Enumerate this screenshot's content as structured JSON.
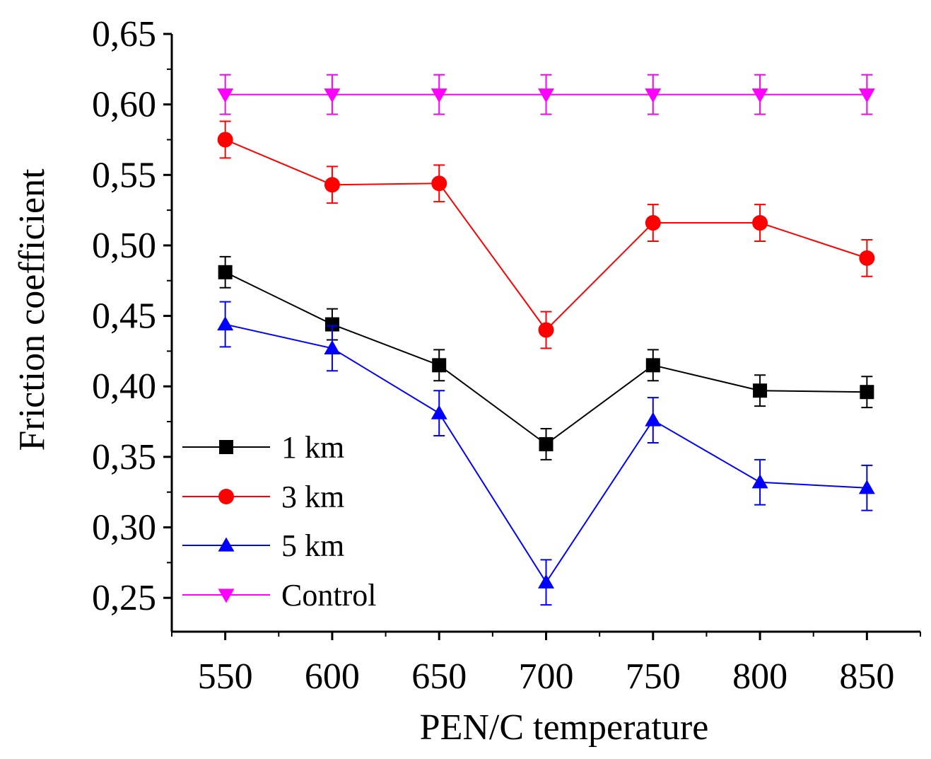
{
  "chart_data": {
    "type": "line",
    "title": "",
    "xlabel": "PEN/C temperature",
    "ylabel": "Friction coefficient",
    "x": [
      550,
      600,
      650,
      700,
      750,
      800,
      850
    ],
    "x_tick_labels": [
      "550",
      "600",
      "650",
      "700",
      "750",
      "800",
      "850"
    ],
    "y_ticks": [
      0.25,
      0.3,
      0.35,
      0.4,
      0.45,
      0.5,
      0.55,
      0.6,
      0.65
    ],
    "y_tick_labels": [
      "0,25",
      "0,30",
      "0,35",
      "0,40",
      "0,45",
      "0,50",
      "0,55",
      "0,60",
      "0,65"
    ],
    "xlim": [
      525,
      875
    ],
    "ylim": [
      0.226,
      0.65
    ],
    "grid": false,
    "legend_position": "bottom-left",
    "series": [
      {
        "name": "1 km",
        "color": "#000000",
        "marker": "square",
        "values": [
          0.481,
          0.444,
          0.415,
          0.359,
          0.415,
          0.397,
          0.396
        ],
        "errors": [
          0.011,
          0.011,
          0.011,
          0.011,
          0.011,
          0.011,
          0.011
        ]
      },
      {
        "name": "3 km",
        "color": "#ff0000",
        "marker": "circle",
        "values": [
          0.575,
          0.543,
          0.544,
          0.44,
          0.516,
          0.516,
          0.491
        ],
        "errors": [
          0.013,
          0.013,
          0.013,
          0.013,
          0.013,
          0.013,
          0.013
        ]
      },
      {
        "name": "5 km",
        "color": "#0000ff",
        "marker": "triangle-up",
        "values": [
          0.444,
          0.427,
          0.381,
          0.261,
          0.376,
          0.332,
          0.328
        ],
        "errors": [
          0.016,
          0.016,
          0.016,
          0.016,
          0.016,
          0.016,
          0.016
        ]
      },
      {
        "name": "Control",
        "color": "#ff00ff",
        "marker": "triangle-down",
        "values": [
          0.607,
          0.607,
          0.607,
          0.607,
          0.607,
          0.607,
          0.607
        ],
        "errors": [
          0.014,
          0.014,
          0.014,
          0.014,
          0.014,
          0.014,
          0.014
        ]
      }
    ]
  }
}
